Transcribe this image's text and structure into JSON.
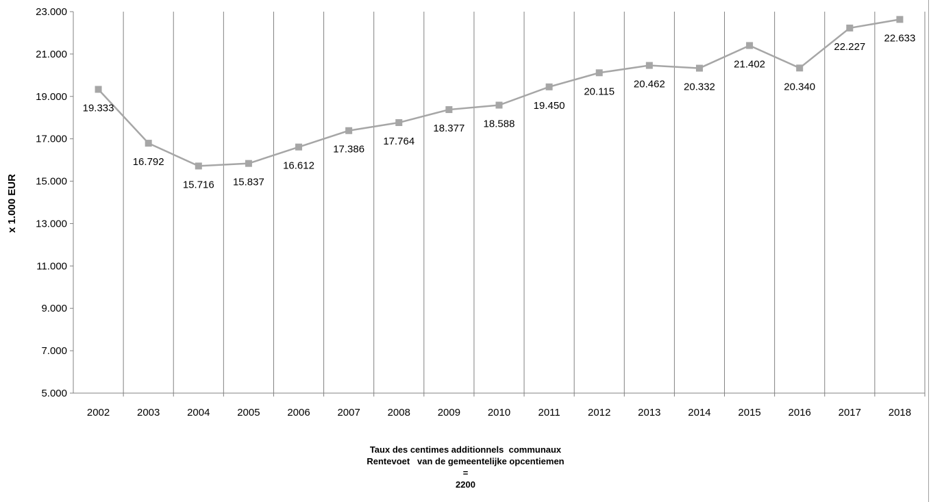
{
  "chart_data": {
    "type": "line",
    "ylabel": "x 1.000 EUR",
    "xlabel": "",
    "ylim": [
      5000,
      23000
    ],
    "y_ticks": [
      "5.000",
      "7.000",
      "9.000",
      "11.000",
      "13.000",
      "15.000",
      "17.000",
      "19.000",
      "21.000",
      "23.000"
    ],
    "y_tick_values": [
      5000,
      7000,
      9000,
      11000,
      13000,
      15000,
      17000,
      19000,
      21000,
      23000
    ],
    "categories": [
      "2002",
      "2003",
      "2004",
      "2005",
      "2006",
      "2007",
      "2008",
      "2009",
      "2010",
      "2011",
      "2012",
      "2013",
      "2014",
      "2015",
      "2016",
      "2017",
      "2018"
    ],
    "series": [
      {
        "values": [
          19333,
          16792,
          15716,
          15837,
          16612,
          17386,
          17764,
          18377,
          18588,
          19450,
          20115,
          20462,
          20332,
          21402,
          20340,
          22227,
          22633
        ],
        "labels": [
          "19.333",
          "16.792",
          "15.716",
          "15.837",
          "16.612",
          "17.386",
          "17.764",
          "18.377",
          "18.588",
          "19.450",
          "20.115",
          "20.462",
          "20.332",
          "21.402",
          "20.340",
          "22.227",
          "22.633"
        ],
        "color": "#a6a6a6",
        "marker": "square"
      }
    ],
    "grid": "vertical",
    "gridline_color": "#808080",
    "legend": "none"
  },
  "caption": {
    "line1": "Taux des centimes additionnels  communaux",
    "line2": "Rentevoet   van de gemeentelijke opcentiemen",
    "line3": "=",
    "line4": "2200"
  }
}
